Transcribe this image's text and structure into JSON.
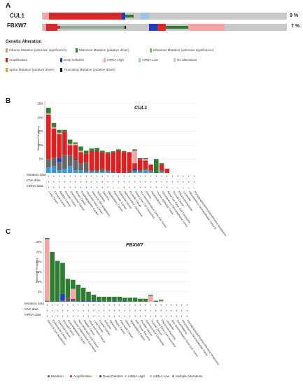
{
  "panel_labels": {
    "a": "A",
    "b": "B",
    "c": "C"
  },
  "oncoprint": {
    "rows": [
      {
        "gene": "CUL1",
        "pct": "9 %"
      },
      {
        "gene": "FBXW7",
        "pct": "7 %"
      }
    ],
    "legend_title": "Genetic Alteration",
    "legend": [
      {
        "label": "Inframe Mutation (unknown significance)",
        "color": "#c8a080"
      },
      {
        "label": "Missense Mutation (putative driver)",
        "color": "#2e7d32"
      },
      {
        "label": "Missense Mutation (unknown significance)",
        "color": "#7fbf7f"
      },
      {
        "label": "Amplification",
        "color": "#e02020"
      },
      {
        "label": "Deep Deletion",
        "color": "#1f3fbf"
      },
      {
        "label": "mRNA High",
        "color": "#f4a6a6"
      },
      {
        "label": "mRNA Low",
        "color": "#9ec5e8"
      },
      {
        "label": "No alterations",
        "color": "#c8c8c8"
      },
      {
        "label": "Splice Mutation (putative driver)",
        "color": "#e0a020"
      },
      {
        "label": "Truncating Mutation (putative driver)",
        "color": "#111111"
      }
    ]
  },
  "row_labels": [
    "Mutation data",
    "CNA data",
    "mRNA data"
  ],
  "bottom_legend": [
    {
      "label": "Mutation",
      "color": "#2e7d32"
    },
    {
      "label": "Amplification",
      "color": "#e02020"
    },
    {
      "label": "Deep Deletion",
      "color": "#1f3fbf"
    },
    {
      "label": "mRNA High",
      "color": "#f4a6a6"
    },
    {
      "label": "mRNA Low",
      "color": "#9ec5e8"
    },
    {
      "label": "Multiple Alterations",
      "color": "#888888"
    }
  ],
  "chart_data": [
    {
      "type": "bar",
      "title": "CUL1",
      "ylabel": "Alteration Frequency",
      "yticks": [
        "5%",
        "10%",
        "15%",
        "20%",
        "25%"
      ],
      "ylim": [
        0,
        25
      ],
      "categories": [
        "Lung Cancer",
        "Cervical Cancer",
        "Bladder Cancer",
        "Ovarian Cancer",
        "Endometrial Cancer",
        "Breast Cancer",
        "Esophagogastric Cancer",
        "Head and Neck Cancer",
        "Mature B-Cell Neoplasms",
        "Melanoma",
        "Sarcoma",
        "Hepatobiliary Cancer",
        "Pancreatic Cancer",
        "Colorectal Cancer",
        "Adrenocortical Carcinoma",
        "Prostate Cancer",
        "Renal Clear Cell Carcinoma",
        "Non-Seminomatous Germ Cell Tumor",
        "Glioma",
        "Mesothelioma",
        "Thymic Epithelial Tumor",
        "Miscellaneous Neuroepithelial Tumor",
        "Renal Non-Clear Cell Carcinoma",
        "Thyroid Cancer",
        "Pheochromocytoma",
        "Leukemia",
        "Miscellaneous Neuroepithelial Tumor B",
        "Myelodysplastic/Myeloproliferative Neoplasms"
      ],
      "mutation_data": [
        "+",
        "+",
        "+",
        "+",
        "+",
        "+",
        "+",
        "+",
        "+",
        "+",
        "+",
        "+",
        "+",
        "+",
        "+",
        "+",
        "+",
        "+",
        "+",
        "+",
        "+",
        "+",
        "+",
        "+",
        "+",
        "+",
        "+",
        "+"
      ],
      "cna_data": [
        "+",
        "+",
        "+",
        "+",
        "+",
        "+",
        "+",
        "+",
        "+",
        "+",
        "+",
        "+",
        "+",
        "+",
        "+",
        "+",
        "+",
        "+",
        "+",
        "+",
        "+",
        "+",
        "+",
        "+",
        "+",
        "+",
        "+",
        "+"
      ],
      "mrna_data": [
        "+",
        "+",
        "+",
        "+",
        "+",
        "+",
        "+",
        "+",
        "+",
        "+",
        "+",
        "+",
        "−",
        "−",
        "+",
        "+",
        "+",
        "+",
        "+",
        "+",
        "+",
        "+",
        "+",
        "−",
        "−",
        "−",
        "−",
        "−"
      ],
      "series": [
        {
          "name": "Mutation",
          "values": [
            2.0,
            1.5,
            1.0,
            0.5,
            1.5,
            0.5,
            1.5,
            1.0,
            0.8,
            1.0,
            0.5,
            0.5,
            0.3,
            0.5,
            0.4,
            0.0,
            0.5,
            0.3,
            0.3,
            0.0,
            5.0,
            0.5,
            0.0,
            0.0,
            0.0,
            0.0,
            0.0,
            0.0
          ]
        },
        {
          "name": "Amplification",
          "values": [
            16.0,
            10.5,
            8.5,
            8.5,
            3.5,
            5.0,
            4.0,
            3.0,
            7.0,
            7.0,
            6.0,
            6.0,
            7.0,
            8.0,
            7.5,
            7.0,
            2.0,
            4.0,
            3.0,
            2.0,
            0.0,
            2.0,
            1.5,
            0.0,
            0.0,
            0.0,
            0.0,
            0.0
          ]
        },
        {
          "name": "Deep Deletion",
          "values": [
            0.0,
            0.0,
            1.5,
            0.0,
            0.0,
            0.5,
            0.0,
            0.0,
            0.0,
            0.0,
            0.0,
            0.0,
            0.0,
            0.0,
            0.0,
            0.0,
            0.5,
            0.0,
            0.0,
            0.0,
            0.0,
            0.0,
            0.0,
            0.0,
            0.0,
            0.0,
            0.0,
            0.0
          ]
        },
        {
          "name": "mRNA High",
          "values": [
            0.5,
            0.5,
            0.5,
            0.0,
            0.5,
            0.5,
            0.5,
            0.0,
            0.0,
            0.0,
            0.0,
            0.0,
            0.0,
            0.0,
            0.0,
            0.0,
            4.5,
            0.0,
            0.5,
            0.0,
            0.0,
            0.0,
            0.0,
            0.0,
            0.0,
            0.0,
            0.0,
            0.0
          ]
        },
        {
          "name": "mRNA Low",
          "values": [
            2.0,
            2.5,
            1.0,
            1.5,
            2.5,
            1.0,
            1.0,
            0.5,
            0.5,
            0.5,
            0.5,
            0.5,
            0.0,
            0.0,
            0.0,
            0.0,
            0.5,
            0.5,
            1.0,
            0.5,
            0.0,
            0.5,
            0.0,
            0.0,
            0.0,
            0.0,
            0.0,
            0.0
          ]
        },
        {
          "name": "Multiple Alterations",
          "values": [
            3.0,
            3.0,
            3.0,
            5.0,
            4.0,
            3.5,
            2.5,
            3.5,
            0.5,
            0.5,
            1.0,
            0.5,
            0.5,
            0.0,
            0.0,
            0.5,
            0.5,
            0.5,
            0.5,
            0.5,
            0.0,
            0.5,
            0.0,
            0.0,
            0.0,
            0.0,
            0.0,
            0.0
          ]
        }
      ]
    },
    {
      "type": "bar",
      "title": "FBXW7",
      "ylabel": "Alteration Frequency",
      "yticks": [
        "5%",
        "10%",
        "15%",
        "20%",
        "25%",
        "30%"
      ],
      "ylim": [
        0,
        32
      ],
      "categories": [
        "Mature B-Cell Neoplasms",
        "Endometrial Cancer",
        "Colorectal Cancer",
        "Cervical Cancer",
        "Esophagogastric Cancer",
        "Uterine Endometrioid Carcinoma",
        "Non-Small Cell Lung Cancer",
        "Bladder Cancer",
        "Head and Neck Cancer",
        "Lung Cancer",
        "Ovarian Cancer",
        "Sarcoma",
        "Melanoma",
        "Breast Cancer",
        "Pancreatic Cancer",
        "Glioma",
        "Hepatobiliary Cancer",
        "Soft Tissue Sarcoma",
        "Prostate Cancer",
        "Adrenocortical Carcinoma",
        "Thyroid Cancer",
        "Renal Clear Cell Carcinoma",
        "Pheochromocytoma",
        "Leukemia",
        "Non-Seminomatous Germ Cell Tumor",
        "Mesothelioma",
        "Miscellaneous Neuroepithelial Tumor",
        "Myelodysplastic/Myeloproliferative Neoplasms"
      ],
      "mutation_data": [
        "+",
        "+",
        "+",
        "+",
        "+",
        "+",
        "+",
        "+",
        "+",
        "+",
        "+",
        "+",
        "+",
        "+",
        "+",
        "+",
        "+",
        "+",
        "+",
        "+",
        "+",
        "+",
        "+",
        "+",
        "+",
        "+",
        "+",
        "+"
      ],
      "cna_data": [
        "+",
        "+",
        "+",
        "+",
        "+",
        "+",
        "+",
        "+",
        "+",
        "+",
        "+",
        "+",
        "+",
        "+",
        "+",
        "+",
        "+",
        "+",
        "+",
        "+",
        "+",
        "+",
        "+",
        "+",
        "+",
        "+",
        "+",
        "+"
      ],
      "mrna_data": [
        "+",
        "+",
        "+",
        "+",
        "+",
        "+",
        "+",
        "+",
        "+",
        "+",
        "+",
        "+",
        "+",
        "+",
        "+",
        "+",
        "+",
        "+",
        "+",
        "+",
        "+",
        "+",
        "+",
        "+",
        "+",
        "+",
        "+",
        "+"
      ],
      "series": [
        {
          "name": "Mutation",
          "values": [
            0.5,
            25.0,
            20.5,
            15.5,
            10.0,
            4.5,
            8.5,
            6.5,
            4.5,
            3.0,
            2.0,
            2.5,
            2.5,
            2.0,
            2.5,
            1.5,
            2.0,
            2.0,
            1.5,
            1.5,
            0.5,
            0.5,
            0.5,
            0.0,
            0.0,
            0.0,
            0.0,
            0.0
          ]
        },
        {
          "name": "Amplification",
          "values": [
            0.0,
            0.0,
            0.0,
            0.0,
            0.5,
            0.5,
            0.0,
            0.0,
            0.0,
            0.0,
            0.0,
            0.0,
            0.0,
            0.0,
            0.0,
            0.0,
            0.0,
            0.0,
            0.0,
            0.0,
            0.0,
            0.0,
            0.0,
            0.0,
            0.0,
            0.0,
            0.0,
            0.0
          ]
        },
        {
          "name": "Deep Deletion",
          "values": [
            0.0,
            0.0,
            0.0,
            3.5,
            0.5,
            0.5,
            0.0,
            0.5,
            0.5,
            0.5,
            0.5,
            0.0,
            0.0,
            0.5,
            0.0,
            0.5,
            0.0,
            0.0,
            0.0,
            0.0,
            0.0,
            0.0,
            0.0,
            0.0,
            0.0,
            0.0,
            0.0,
            0.0
          ]
        },
        {
          "name": "mRNA High",
          "values": [
            31.0,
            0.0,
            0.0,
            0.0,
            0.0,
            5.0,
            0.0,
            0.0,
            0.0,
            0.0,
            0.0,
            0.0,
            0.0,
            0.0,
            0.0,
            0.0,
            0.0,
            0.0,
            0.0,
            0.0,
            3.0,
            0.0,
            0.5,
            0.0,
            0.0,
            0.0,
            0.0,
            0.0
          ]
        },
        {
          "name": "mRNA Low",
          "values": [
            0.0,
            0.0,
            0.0,
            0.0,
            0.0,
            0.0,
            0.0,
            0.0,
            0.0,
            0.0,
            0.0,
            0.0,
            0.0,
            0.0,
            0.0,
            0.0,
            0.0,
            0.0,
            0.0,
            0.0,
            0.0,
            0.0,
            0.0,
            0.0,
            0.0,
            0.0,
            0.0,
            0.0
          ]
        },
        {
          "name": "Multiple Alterations",
          "values": [
            0.5,
            0.0,
            0.0,
            0.5,
            0.5,
            0.5,
            0.0,
            0.0,
            0.0,
            0.0,
            0.0,
            0.0,
            0.0,
            0.0,
            0.0,
            0.0,
            0.0,
            0.0,
            0.0,
            0.0,
            0.0,
            0.0,
            0.0,
            0.0,
            0.0,
            0.0,
            0.0,
            0.0
          ]
        }
      ]
    }
  ]
}
